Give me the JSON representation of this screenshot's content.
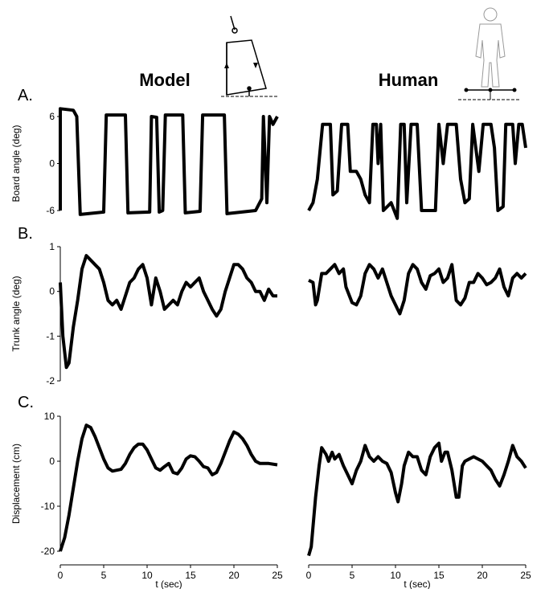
{
  "column_titles": [
    "Model",
    "Human"
  ],
  "panel_labels": [
    "A.",
    "B.",
    "C."
  ],
  "chart_data": [
    {
      "type": "line",
      "color": "#000000",
      "ylabel": "Board angle (deg)",
      "xlim": [
        0,
        25
      ],
      "ylim": [
        -6,
        6
      ],
      "yticks": [
        -6,
        0,
        6
      ],
      "x": [
        0,
        0,
        1.5,
        1.9,
        2.3,
        5,
        5.3,
        7.5,
        7.8,
        10.3,
        10.5,
        11.1,
        11.4,
        11.8,
        12.1,
        14.1,
        14.4,
        16.1,
        16.4,
        18.9,
        19.2,
        22.5,
        23.2,
        23.4,
        23.8,
        24.1,
        24.5,
        25
      ],
      "values": [
        -6,
        7,
        6.8,
        6,
        -6.5,
        -6.2,
        6.2,
        6.2,
        -6.3,
        -6.2,
        6,
        5.9,
        -6.2,
        -6,
        6.2,
        6.2,
        -6.3,
        -6.1,
        6.2,
        6.2,
        -6.4,
        -6,
        -4.5,
        6,
        -5,
        6,
        5,
        6
      ]
    },
    {
      "type": "line",
      "color": "#000000",
      "xlim": [
        0,
        25
      ],
      "ylim": [
        -6,
        6
      ],
      "x": [
        0,
        0.5,
        1,
        1.6,
        2.5,
        2.8,
        3.3,
        3.8,
        4.5,
        4.8,
        5.5,
        6,
        6.5,
        7,
        7.4,
        7.8,
        8,
        8.3,
        8.6,
        9.5,
        10.2,
        10.6,
        11,
        11.3,
        11.8,
        12.5,
        13,
        14.6,
        15,
        15.5,
        16,
        17,
        17.5,
        18,
        18.5,
        18.9,
        19.6,
        20.1,
        21,
        21.4,
        21.8,
        22.4,
        22.7,
        23.5,
        23.8,
        24.2,
        24.6,
        25
      ],
      "values": [
        -6,
        -5,
        -2,
        5,
        5,
        -4,
        -3.5,
        5,
        5,
        -1,
        -1,
        -2,
        -4,
        -5,
        5,
        5,
        0,
        5,
        -6,
        -5,
        -7,
        5,
        5,
        -5,
        5,
        5,
        -6,
        -6,
        5,
        0,
        5,
        5,
        -2,
        -5,
        -4.5,
        5,
        -1,
        5,
        5,
        2,
        -6,
        -5.5,
        5,
        5,
        0,
        5,
        5,
        2
      ]
    },
    {
      "type": "line",
      "color": "#000000",
      "ylabel": "Trunk angle (deg)",
      "xlim": [
        0,
        25
      ],
      "ylim": [
        -2,
        1
      ],
      "yticks": [
        -2,
        -1,
        0,
        1
      ],
      "x": [
        0,
        0.3,
        0.7,
        1,
        1.5,
        2,
        2.5,
        3,
        3.5,
        4,
        4.5,
        5,
        5.5,
        6,
        6.5,
        7,
        7.5,
        8,
        8.5,
        9,
        9.5,
        10,
        10.5,
        11,
        11.5,
        12,
        12.5,
        13,
        13.5,
        14,
        14.5,
        15,
        15.5,
        16,
        16.5,
        17,
        17.5,
        18,
        18.5,
        19,
        19.5,
        20,
        20.5,
        21,
        21.5,
        22,
        22.5,
        23,
        23.5,
        24,
        24.5,
        25
      ],
      "values": [
        0.2,
        -1,
        -1.7,
        -1.6,
        -0.8,
        -0.2,
        0.5,
        0.8,
        0.7,
        0.6,
        0.5,
        0.2,
        -0.2,
        -0.3,
        -0.2,
        -0.4,
        -0.1,
        0.2,
        0.3,
        0.5,
        0.6,
        0.3,
        -0.3,
        0.3,
        0,
        -0.4,
        -0.3,
        -0.2,
        -0.3,
        0,
        0.2,
        0.1,
        0.2,
        0.3,
        0,
        -0.2,
        -0.4,
        -0.55,
        -0.4,
        0,
        0.3,
        0.6,
        0.6,
        0.5,
        0.3,
        0.2,
        0,
        0,
        -0.2,
        0.05,
        -0.1,
        -0.1
      ]
    },
    {
      "type": "line",
      "color": "#000000",
      "xlim": [
        0,
        25
      ],
      "ylim": [
        -2,
        1
      ],
      "x": [
        0,
        0.5,
        0.8,
        1,
        1.5,
        2,
        2.5,
        3,
        3.5,
        4,
        4.3,
        5,
        5.5,
        6,
        6.5,
        7,
        7.5,
        8,
        8.5,
        9,
        9.5,
        10,
        10.5,
        11,
        11.5,
        12,
        12.5,
        13,
        13.5,
        14,
        14.5,
        15,
        15.5,
        16,
        16.5,
        17,
        17.5,
        18,
        18.5,
        19,
        19.5,
        20,
        20.5,
        21,
        21.5,
        22,
        22.5,
        23,
        23.5,
        24,
        24.5,
        25
      ],
      "values": [
        0.25,
        0.2,
        -0.3,
        -0.2,
        0.4,
        0.4,
        0.5,
        0.6,
        0.4,
        0.5,
        0.1,
        -0.25,
        -0.3,
        -0.1,
        0.4,
        0.6,
        0.5,
        0.3,
        0.5,
        0.2,
        -0.1,
        -0.3,
        -0.5,
        -0.2,
        0.4,
        0.6,
        0.5,
        0.2,
        0.05,
        0.35,
        0.4,
        0.5,
        0.2,
        0.3,
        0.6,
        -0.2,
        -0.3,
        -0.15,
        0.2,
        0.2,
        0.4,
        0.3,
        0.15,
        0.2,
        0.3,
        0.5,
        0.1,
        -0.1,
        0.3,
        0.4,
        0.3,
        0.4
      ]
    },
    {
      "type": "line",
      "color": "#000000",
      "ylabel": "Displacement (cm)",
      "xlabel": "t (sec)",
      "xlim": [
        0,
        25
      ],
      "xticks": [
        0,
        5,
        10,
        15,
        20,
        25
      ],
      "ylim": [
        -20,
        10
      ],
      "yticks": [
        -20,
        -10,
        0,
        10
      ],
      "x": [
        0,
        0.5,
        1,
        1.5,
        2,
        2.5,
        3,
        3.5,
        4,
        4.5,
        5,
        5.5,
        6,
        7,
        7.5,
        8,
        8.5,
        9,
        9.5,
        10,
        10.5,
        11,
        11.5,
        12,
        12.5,
        13,
        13.5,
        14,
        14.5,
        15,
        15.5,
        16,
        16.5,
        17,
        17.5,
        18,
        18.5,
        19,
        19.5,
        20,
        20.5,
        21,
        21.5,
        22,
        22.5,
        23,
        24,
        25
      ],
      "values": [
        -20,
        -17,
        -12,
        -6,
        0,
        5,
        8,
        7.5,
        5.5,
        3,
        0.5,
        -1.5,
        -2.2,
        -1.8,
        -0.5,
        1.5,
        3,
        3.8,
        3.8,
        2.5,
        0.5,
        -1.5,
        -2,
        -1.2,
        -0.5,
        -2.5,
        -2.8,
        -1.5,
        0.5,
        1.2,
        1,
        0,
        -1.2,
        -1.5,
        -3,
        -2.5,
        -0.5,
        2,
        4.5,
        6.5,
        6,
        5,
        3.5,
        1.5,
        0,
        -0.5,
        -0.5,
        -0.8
      ]
    },
    {
      "type": "line",
      "color": "#000000",
      "xlabel": "t (sec)",
      "xlim": [
        0,
        25
      ],
      "xticks": [
        0,
        5,
        10,
        15,
        20,
        25
      ],
      "ylim": [
        -20,
        10
      ],
      "x": [
        0,
        0.3,
        0.8,
        1.2,
        1.5,
        2,
        2.3,
        2.7,
        3,
        3.5,
        4,
        4.5,
        5,
        5.5,
        6,
        6.5,
        7,
        7.5,
        8,
        8.5,
        9,
        9.5,
        10,
        10.3,
        10.7,
        11,
        11.5,
        12,
        12.5,
        13,
        13.5,
        14,
        14.5,
        15,
        15.3,
        15.7,
        16,
        16.5,
        17,
        17.3,
        17.7,
        18,
        18.5,
        19,
        20,
        21,
        21.5,
        22,
        22.5,
        23,
        23.5,
        24,
        24.5,
        25
      ],
      "values": [
        -21,
        -19,
        -8,
        -1,
        3,
        1.5,
        0,
        2,
        0.5,
        1.5,
        -1,
        -3,
        -5,
        -2,
        0,
        3.5,
        1,
        0,
        1,
        0,
        -0.5,
        -2.5,
        -7,
        -9,
        -5,
        -1,
        2,
        1,
        1,
        -2,
        -3,
        1,
        3,
        4,
        0,
        2,
        2,
        -2,
        -8,
        -8,
        -1,
        0,
        0.5,
        1,
        0,
        -2,
        -4,
        -5.5,
        -3,
        0,
        3.5,
        1,
        0,
        -1.5
      ]
    }
  ]
}
